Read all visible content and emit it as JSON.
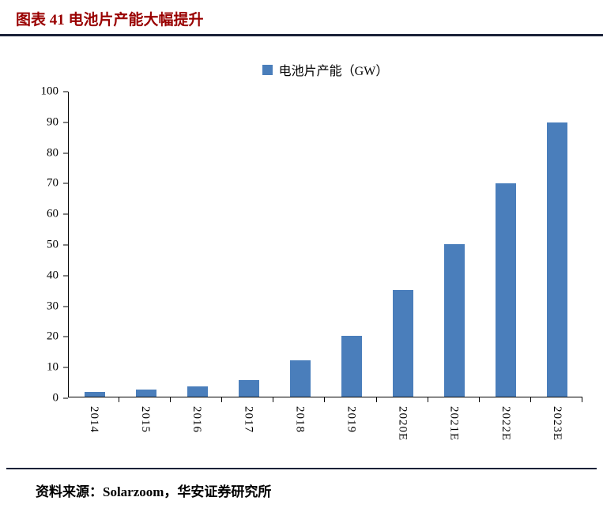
{
  "header": {
    "title": "图表 41 电池片产能大幅提升"
  },
  "footer": {
    "source": "资料来源：Solarzoom，华安证券研究所"
  },
  "colors": {
    "title": "#990000",
    "rule": "#1A2238",
    "axis": "#000000",
    "bar": "#4A7EBB"
  },
  "chart_data": {
    "type": "bar",
    "title": "",
    "legend": "电池片产能（GW）",
    "legend_position": "top-center",
    "categories": [
      "2014",
      "2015",
      "2016",
      "2017",
      "2018",
      "2019",
      "2020E",
      "2021E",
      "2022E",
      "2023E"
    ],
    "values": [
      1.5,
      2.3,
      3.4,
      5.5,
      12,
      20,
      35,
      50,
      70,
      90
    ],
    "xlabel": "",
    "ylabel": "",
    "ylim": [
      0,
      100
    ],
    "yticks": [
      0,
      10,
      20,
      30,
      40,
      50,
      60,
      70,
      80,
      90,
      100
    ],
    "grid": false,
    "bar_color": "#4A7EBB"
  }
}
